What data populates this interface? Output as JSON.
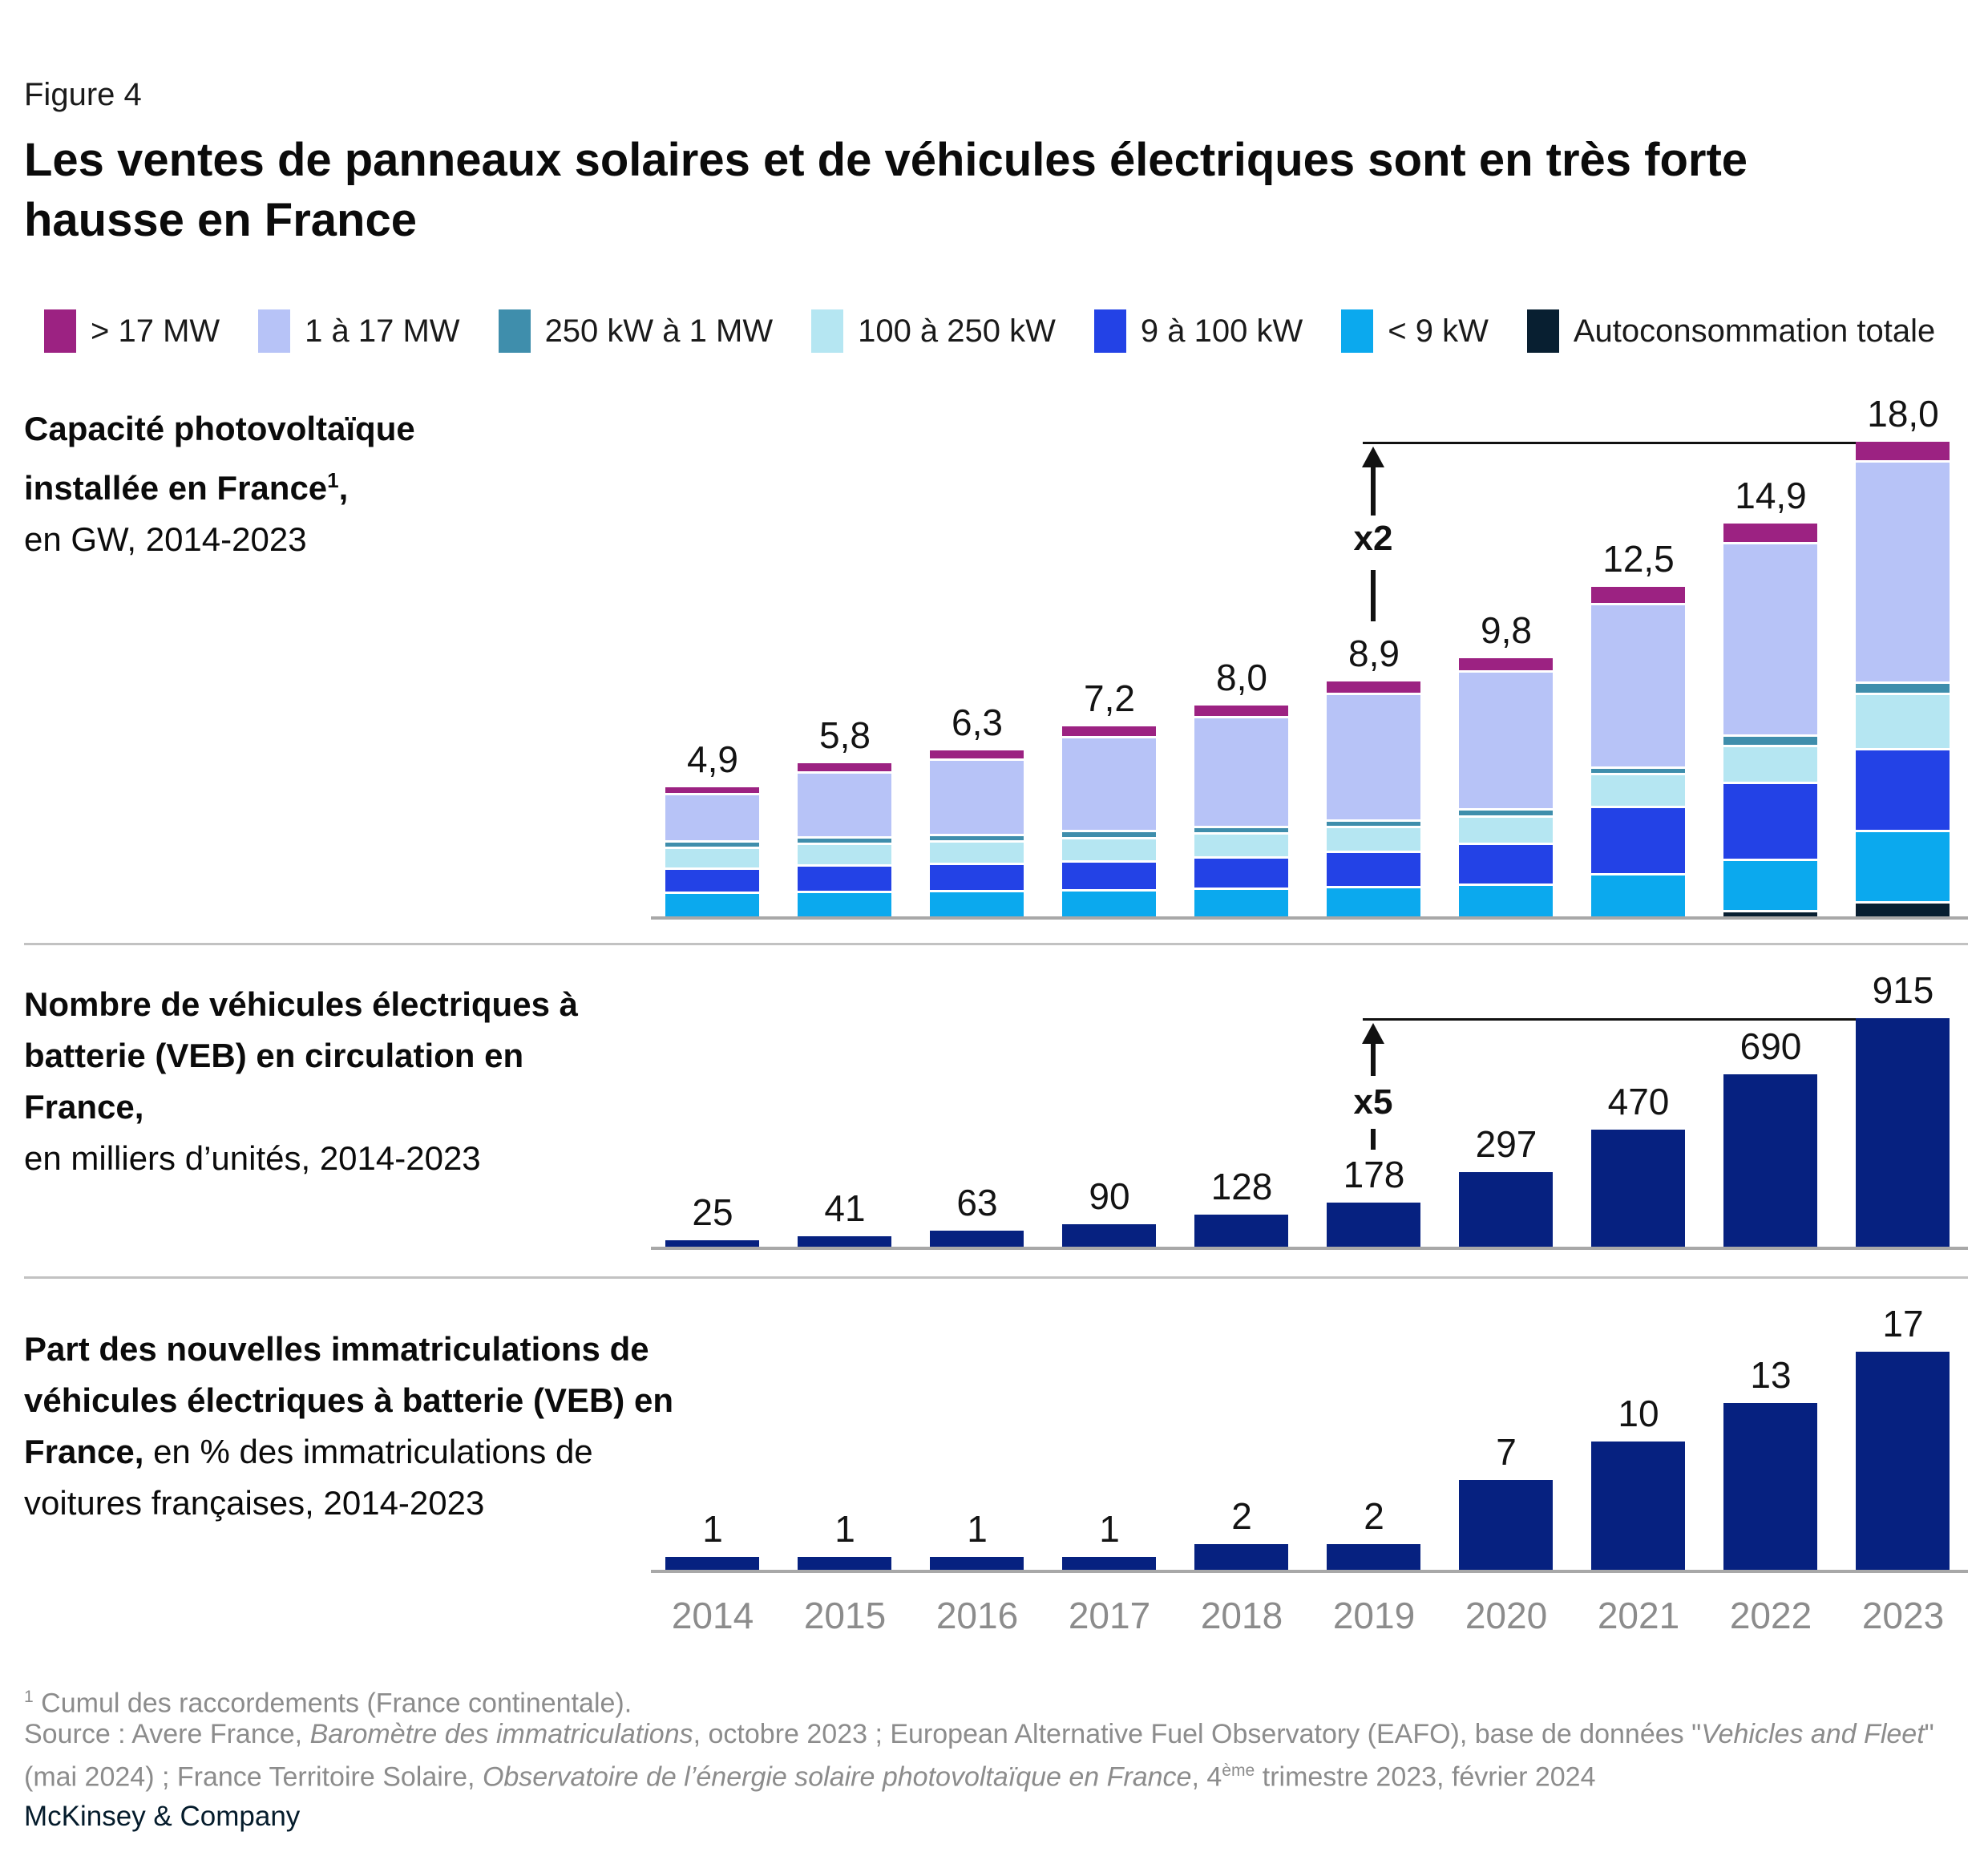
{
  "figure_label": "Figure 4",
  "title": "Les ventes de panneaux solaires et de véhicules électriques sont en très forte hausse en France",
  "palette": {
    "gt17mw": "#9C2282",
    "mw1to17": "#B7C3F7",
    "kw250to1mw": "#3F8EAC",
    "kw100to250": "#B5E6F2",
    "kw9to100": "#2342E6",
    "lt9kw": "#0BA9EE",
    "autoconsommation": "#081F31",
    "ev_bar_navy": "#062180",
    "axis_gray": "#A8A8A8",
    "year_label_gray": "#8C8C8C",
    "footnote_gray": "#8C8C8C"
  },
  "legend": [
    {
      "label": "> 17 MW",
      "color": "#9C2282"
    },
    {
      "label": "1 à 17 MW",
      "color": "#B7C3F7"
    },
    {
      "label": "250 kW à 1 MW",
      "color": "#3F8EAC"
    },
    {
      "label": "100 à 250 kW",
      "color": "#B5E6F2"
    },
    {
      "label": "9 à 100 kW",
      "color": "#2342E6"
    },
    {
      "label": "< 9 kW",
      "color": "#0BA9EE"
    },
    {
      "label": "Autoconsommation totale",
      "color": "#081F31"
    }
  ],
  "chart_data": [
    {
      "id": "pv-capacity",
      "type": "bar",
      "stacked": true,
      "label_bold": "Capacité photovoltaïque installée en France",
      "label_sup": "1",
      "label_bold_tail": ",",
      "label_regular": "en GW, 2014-2023",
      "unit": "GW",
      "categories": [
        "2014",
        "2015",
        "2016",
        "2017",
        "2018",
        "2019",
        "2020",
        "2021",
        "2022",
        "2023"
      ],
      "series": [
        {
          "name": "Autoconsommation totale",
          "color": "#081F31",
          "values": [
            0,
            0,
            0,
            0,
            0,
            0,
            0,
            0,
            0.15,
            0.5
          ]
        },
        {
          "name": "< 9 kW",
          "color": "#0BA9EE",
          "values": [
            0.85,
            0.88,
            0.9,
            0.95,
            1.0,
            1.05,
            1.15,
            1.55,
            1.95,
            2.7
          ]
        },
        {
          "name": "9 à 100 kW",
          "color": "#2342E6",
          "values": [
            0.9,
            1.0,
            1.05,
            1.1,
            1.2,
            1.35,
            1.55,
            2.55,
            2.9,
            3.1
          ]
        },
        {
          "name": "100 à 250 kW",
          "color": "#B5E6F2",
          "values": [
            0.8,
            0.82,
            0.85,
            0.88,
            0.9,
            0.95,
            1.05,
            1.25,
            1.4,
            2.1
          ]
        },
        {
          "name": "250 kW à 1 MW",
          "color": "#3F8EAC",
          "values": [
            0.25,
            0.25,
            0.25,
            0.25,
            0.25,
            0.25,
            0.25,
            0.25,
            0.4,
            0.4
          ]
        },
        {
          "name": "1 à 17 MW",
          "color": "#B7C3F7",
          "values": [
            1.8,
            2.45,
            2.85,
            3.57,
            4.15,
            4.8,
            5.25,
            6.2,
            7.3,
            8.4
          ]
        },
        {
          "name": "> 17 MW",
          "color": "#9C2282",
          "values": [
            0.3,
            0.4,
            0.4,
            0.45,
            0.5,
            0.5,
            0.55,
            0.7,
            0.8,
            0.8
          ]
        }
      ],
      "totals": [
        4.9,
        5.8,
        6.3,
        7.2,
        8.0,
        8.9,
        9.8,
        12.5,
        14.9,
        18.0
      ],
      "totals_display": [
        "4,9",
        "5,8",
        "6,3",
        "7,2",
        "8,0",
        "8,9",
        "9,8",
        "12,5",
        "14,9",
        "18,0"
      ],
      "ylim": [
        0,
        18.0
      ],
      "legend_position": "top",
      "grid": false,
      "annotation": {
        "label": "x2",
        "from_year": "2019",
        "to_year": "2023"
      }
    },
    {
      "id": "bev-fleet",
      "type": "bar",
      "label_bold": "Nombre de véhicules électriques à batterie (VEB) en circulation en France,",
      "label_regular": "en milliers d’unités, 2014-2023",
      "unit": "milliers d’unités",
      "categories": [
        "2014",
        "2015",
        "2016",
        "2017",
        "2018",
        "2019",
        "2020",
        "2021",
        "2022",
        "2023"
      ],
      "values": [
        25,
        41,
        63,
        90,
        128,
        178,
        297,
        470,
        690,
        915
      ],
      "values_display": [
        "25",
        "41",
        "63",
        "90",
        "128",
        "178",
        "297",
        "470",
        "690",
        "915"
      ],
      "ylim": [
        0,
        915
      ],
      "grid": false,
      "annotation": {
        "label": "x5",
        "from_year": "2019",
        "to_year": "2023"
      }
    },
    {
      "id": "bev-share",
      "type": "bar",
      "label_bold": "Part des nouvelles immatriculations de véhicules électriques à batterie (VEB) en France,",
      "label_regular": " en % des immatriculations de voitures françaises, 2014-2023",
      "unit": "%",
      "categories": [
        "2014",
        "2015",
        "2016",
        "2017",
        "2018",
        "2019",
        "2020",
        "2021",
        "2022",
        "2023"
      ],
      "values": [
        1,
        1,
        1,
        1,
        2,
        2,
        7,
        10,
        13,
        17
      ],
      "values_display": [
        "1",
        "1",
        "1",
        "1",
        "2",
        "2",
        "7",
        "10",
        "13",
        "17"
      ],
      "ylim": [
        0,
        17
      ],
      "grid": false,
      "annotation": null,
      "x_axis_labels_visible": true
    }
  ],
  "footnote": {
    "sup": "1",
    "text": " Cumul des raccordements (France continentale)."
  },
  "source": {
    "p0": "Source : Avere France, ",
    "p1": "Baromètre des immatriculations",
    "p2": ", octobre 2023 ; European Alternative Fuel Observatory (EAFO), base de données \"",
    "p3": "Vehicles and Fleet",
    "p4": "\" (mai 2024) ; France Territoire Solaire, ",
    "p5": "Observatoire de l’énergie solaire photovoltaïque en France",
    "p6": ", 4",
    "p7": "ème",
    "p8": " trimestre 2023, février 2024"
  },
  "logo": "McKinsey & Company"
}
